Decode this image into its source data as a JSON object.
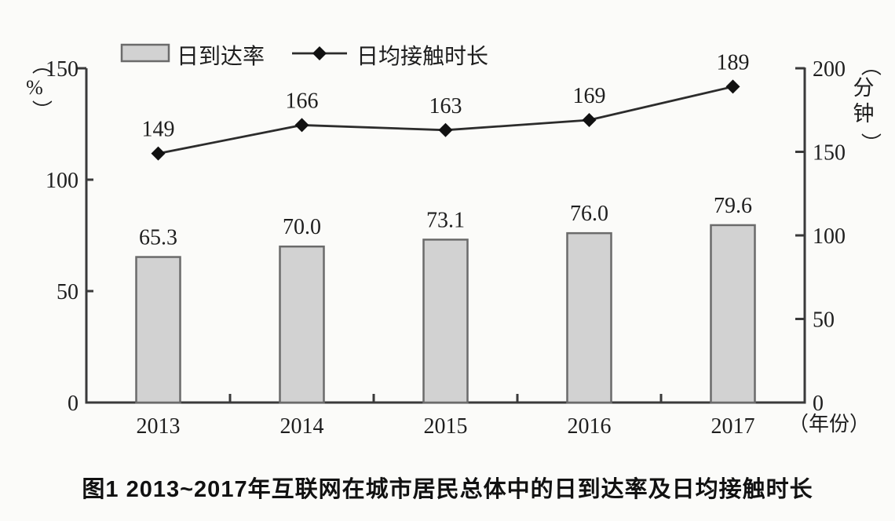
{
  "caption": "图1  2013~2017年互联网在城市居民总体中的日到达率及日均接触时长",
  "chart_data": {
    "type": "bar+line",
    "categories": [
      "2013",
      "2014",
      "2015",
      "2016",
      "2017"
    ],
    "series": [
      {
        "name": "日到达率",
        "type": "bar",
        "axis": "left",
        "unit": "%",
        "values": [
          65.3,
          70.0,
          73.1,
          76.0,
          79.6
        ],
        "labels": [
          "65.3",
          "70.0",
          "73.1",
          "76.0",
          "79.6"
        ]
      },
      {
        "name": "日均接触时长",
        "type": "line",
        "axis": "right",
        "unit": "分钟",
        "values": [
          149,
          166,
          163,
          169,
          189
        ],
        "labels": [
          "149",
          "166",
          "163",
          "169",
          "189"
        ]
      }
    ],
    "left_axis": {
      "label": "（%）",
      "ticks": [
        0,
        50,
        100,
        150
      ],
      "tick_labels": [
        "0",
        "50",
        "100",
        "150"
      ],
      "min": 0,
      "max": 150
    },
    "right_axis": {
      "label": "（分钟）",
      "ticks": [
        0,
        50,
        100,
        150,
        200
      ],
      "tick_labels": [
        "0",
        "50",
        "100",
        "150",
        "200"
      ],
      "min": 0,
      "max": 200
    },
    "x_axis": {
      "label": "（年份）"
    },
    "legend": [
      {
        "name": "日到达率",
        "swatch": "bar"
      },
      {
        "name": "日均接触时长",
        "swatch": "line-diamond"
      }
    ],
    "legend_position": "top",
    "grid": false,
    "title": "图1  2013~2017年互联网在城市居民总体中的日到达率及日均接触时长",
    "colors": {
      "bar_fill": "#d2d2d2",
      "bar_stroke": "#6b6b6b",
      "line": "#2c2c2c",
      "marker": "#111111",
      "axis": "#3a3a3a",
      "text": "#1e1e1e",
      "background": "#fbfbf9"
    }
  }
}
